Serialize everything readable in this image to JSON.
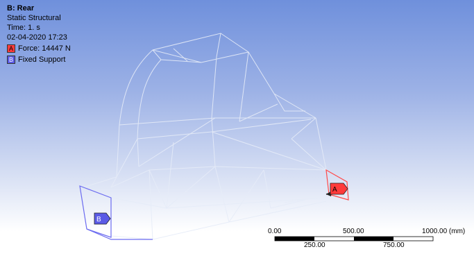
{
  "info": {
    "title": "B: Rear",
    "analysis_type": "Static Structural",
    "time": "Time: 1. s",
    "date": "02-04-2020 17:23"
  },
  "legend": [
    {
      "key": "A",
      "label": "Force: 14447 N",
      "color": "#ff3b3b"
    },
    {
      "key": "B",
      "label": "Fixed Support",
      "color": "#5b5be6"
    }
  ],
  "markers": {
    "force": "A",
    "support": "B"
  },
  "scale_bar": {
    "top_labels": [
      "0.00",
      "500.00",
      "1000.00 (mm)"
    ],
    "bottom_labels": [
      "250.00",
      "750.00"
    ]
  }
}
